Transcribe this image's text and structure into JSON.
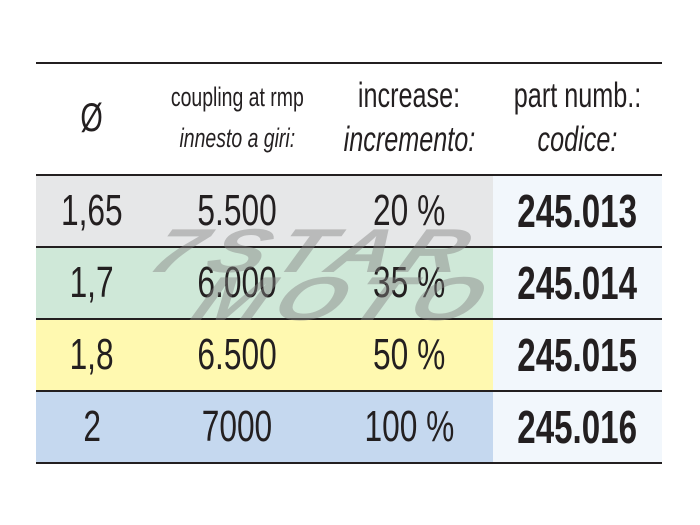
{
  "header": {
    "diameter": "Ø",
    "coupling_en": "coupling at rmp",
    "coupling_it": "innesto a giri:",
    "increase_en": "increase:",
    "increase_it": "incremento:",
    "part_en": "part numb.:",
    "part_it": "codice:"
  },
  "rows": [
    {
      "diameter": "1,65",
      "rpm": "5.500",
      "increase": "20 %",
      "part": "245.013",
      "color": "#e6e7e8"
    },
    {
      "diameter": "1,7",
      "rpm": "6.000",
      "increase": "35 %",
      "part": "245.014",
      "color": "#cfe8d8"
    },
    {
      "diameter": "1,8",
      "rpm": "6.500",
      "increase": "50 %",
      "part": "245.015",
      "color": "#fff9b0"
    },
    {
      "diameter": "2",
      "rpm": "7000",
      "increase": "100 %",
      "part": "245.016",
      "color": "#c5d8ef"
    }
  ],
  "watermark": "7STAR MOTO"
}
